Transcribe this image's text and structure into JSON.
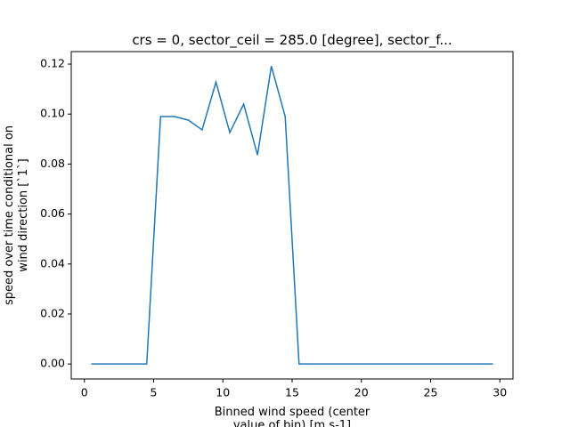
{
  "chart_data": {
    "type": "line",
    "title": "crs = 0, sector_ceil = 285.0 [degree], sector_f...",
    "xlabel": [
      "Binned wind speed (center",
      "value of bin) [m s-1]"
    ],
    "ylabel": [
      "speed over time conditional on",
      "wind direction [`1`]"
    ],
    "x": [
      0.5,
      1.5,
      2.5,
      3.5,
      4.5,
      5.5,
      6.5,
      7.5,
      8.5,
      9.5,
      10.5,
      11.5,
      12.5,
      13.5,
      14.5,
      15.5,
      16.5,
      17.5,
      18.5,
      19.5,
      20.5,
      21.5,
      22.5,
      23.5,
      24.5,
      25.5,
      26.5,
      27.5,
      28.5,
      29.5
    ],
    "series": [
      {
        "color": "#1f77b4",
        "values": [
          0,
          0,
          0,
          0,
          0,
          0.099,
          0.099,
          0.0976,
          0.0937,
          0.1128,
          0.0926,
          0.104,
          0.0836,
          0.1192,
          0.099,
          0,
          0,
          0,
          0,
          0,
          0,
          0,
          0,
          0,
          0,
          0,
          0,
          0,
          0,
          0
        ]
      }
    ],
    "xlim": [
      -0.95,
      30.95
    ],
    "xticks": [
      0,
      5,
      10,
      15,
      20,
      25,
      30
    ],
    "ylim": [
      -0.006,
      0.125
    ],
    "yticks": [
      {
        "value": 0,
        "label": "0.00"
      },
      {
        "value": 0.02,
        "label": "0.02"
      },
      {
        "value": 0.04,
        "label": "0.04"
      },
      {
        "value": 0.06,
        "label": "0.06"
      },
      {
        "value": 0.08,
        "label": "0.08"
      },
      {
        "value": 0.1,
        "label": "0.10"
      },
      {
        "value": 0.12,
        "label": "0.12"
      }
    ]
  }
}
